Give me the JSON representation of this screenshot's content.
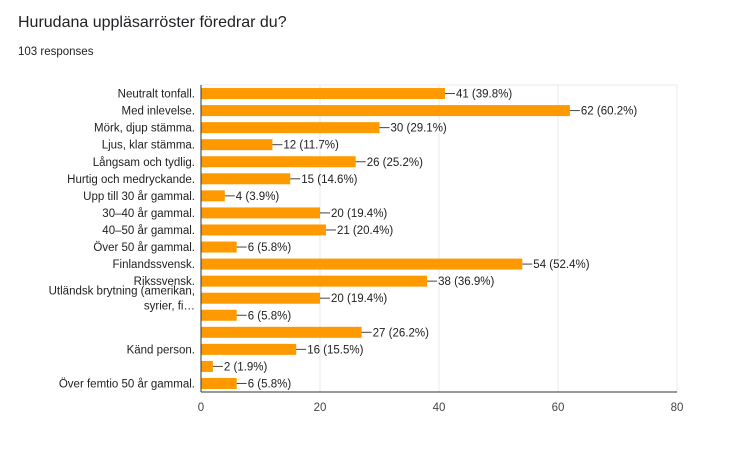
{
  "header": {
    "title": "Hurudana uppläsarröster föredrar du?",
    "responses": "103 responses"
  },
  "colors": {
    "bar": "#ff9900",
    "grid": "#e8e8e8",
    "axis": "#333333",
    "connector": "#444444"
  },
  "chart_data": {
    "type": "bar",
    "orientation": "horizontal",
    "title": "Hurudana uppläsarröster föredrar du?",
    "xlim": [
      0,
      80
    ],
    "xticks": [
      0,
      20,
      40,
      60,
      80
    ],
    "grid": true,
    "categories": [
      [
        "Neutralt tonfall."
      ],
      [
        "Med inlevelse."
      ],
      [
        "Mörk, djup stämma."
      ],
      [
        "Ljus, klar stämma."
      ],
      [
        "Långsam och tydlig."
      ],
      [
        "Hurtig och medryckande."
      ],
      [
        "Upp till 30 år gammal."
      ],
      [
        "30–40 år gammal."
      ],
      [
        "40–50 år gammal."
      ],
      [
        "Över 50 år gammal."
      ],
      [
        "Finlandssvensk."
      ],
      [
        "Rikssvensk."
      ],
      [
        "Utländsk brytning (amerikan,",
        "syrier, fi…"
      ],
      [],
      [],
      [
        "Känd person."
      ],
      [],
      [
        "Över femtio 50 år gammal."
      ]
    ],
    "values": [
      41,
      62,
      30,
      12,
      26,
      15,
      4,
      20,
      21,
      6,
      54,
      38,
      20,
      6,
      27,
      16,
      2,
      6
    ],
    "value_labels": [
      "41 (39.8%)",
      "62 (60.2%)",
      "30 (29.1%)",
      "12 (11.7%)",
      "26 (25.2%)",
      "15 (14.6%)",
      "4 (3.9%)",
      "20 (19.4%)",
      "21 (20.4%)",
      "6 (5.8%)",
      "54 (52.4%)",
      "38 (36.9%)",
      "20 (19.4%)",
      "6 (5.8%)",
      "27 (26.2%)",
      "16 (15.5%)",
      "2 (1.9%)",
      "6 (5.8%)"
    ]
  }
}
